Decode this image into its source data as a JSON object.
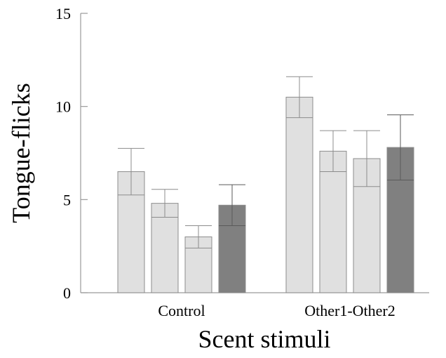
{
  "chart_data": {
    "type": "bar",
    "title": "",
    "xlabel": "Scent stimuli",
    "ylabel": "Tongue-flicks",
    "ylim": [
      0,
      15
    ],
    "yticks": [
      0,
      5,
      10,
      15
    ],
    "grid": false,
    "legend": "none",
    "categories": [
      "Control",
      "Other1-Other2"
    ],
    "series": [
      {
        "values": [
          6.5,
          10.5
        ],
        "errors": [
          1.25,
          1.1
        ],
        "color": "#e0e0e0"
      },
      {
        "values": [
          4.8,
          7.6
        ],
        "errors": [
          0.75,
          1.1
        ],
        "color": "#e0e0e0"
      },
      {
        "values": [
          3.0,
          7.2
        ],
        "errors": [
          0.6,
          1.5
        ],
        "color": "#e0e0e0"
      },
      {
        "values": [
          4.7,
          7.8
        ],
        "errors": [
          1.1,
          1.75
        ],
        "color": "#808080"
      }
    ]
  }
}
